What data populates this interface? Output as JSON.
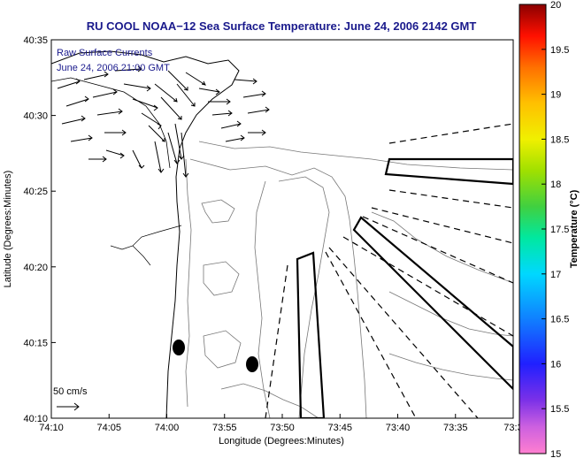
{
  "chart_data": {
    "type": "other",
    "title": "RU COOL   NOAA−12  Sea Surface Temperature:  June 24, 2006 2142 GMT",
    "xlabel": "Longitude (Degrees:Minutes)",
    "ylabel": "Latitude (Degrees:Minutes)",
    "x_ticks": [
      "74:10",
      "74:05",
      "74:00",
      "73:55",
      "73:50",
      "73:45",
      "73:40",
      "73:35",
      "73:3"
    ],
    "y_ticks": [
      "40:35",
      "40:30",
      "40:25",
      "40:20",
      "40:15",
      "40:10"
    ],
    "annotation": [
      "Raw Surface Currents",
      "June 24, 2006 21:00 GMT"
    ],
    "scale_label": "50 cm/s",
    "colorbar": {
      "label": "Temperature (°C)",
      "ticks": [
        "20",
        "19.5",
        "19",
        "18.5",
        "18",
        "17.5",
        "17",
        "16.5",
        "16",
        "15.5",
        "15"
      ],
      "range": [
        15,
        20
      ]
    },
    "markers": [
      "filled-ellipse",
      "filled-ellipse"
    ],
    "grid": false
  }
}
